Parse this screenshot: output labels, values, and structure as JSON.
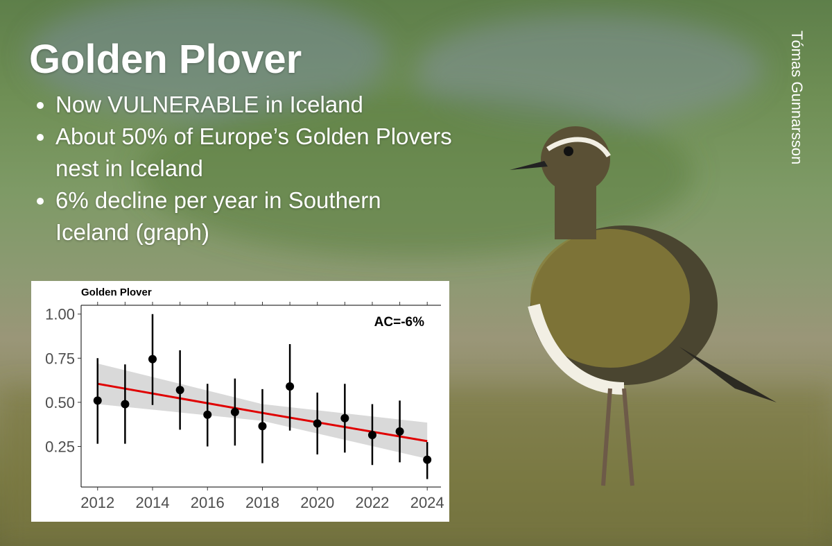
{
  "slide": {
    "title": "Golden Plover",
    "bullets": [
      "Now VULNERABLE in Iceland",
      "About 50% of Europe’s Golden Plovers nest in Iceland",
      "6% decline per year in Southern Iceland (graph)"
    ],
    "credit": "Tómas Gunnarsson"
  },
  "chart_data": {
    "type": "scatter",
    "title": "Golden Plover",
    "annotation": "AC=-6%",
    "x": [
      2012,
      2013,
      2014,
      2015,
      2016,
      2017,
      2018,
      2019,
      2020,
      2021,
      2022,
      2023,
      2024
    ],
    "series": [
      {
        "color": "#000000",
        "values": [
          0.51,
          0.49,
          0.745,
          0.57,
          0.43,
          0.445,
          0.365,
          0.59,
          0.38,
          0.41,
          0.315,
          0.335,
          0.175
        ],
        "lower": [
          0.265,
          0.265,
          0.485,
          0.345,
          0.25,
          0.255,
          0.155,
          0.34,
          0.205,
          0.215,
          0.145,
          0.16,
          0.065
        ],
        "upper": [
          0.75,
          0.715,
          1.0,
          0.795,
          0.605,
          0.635,
          0.575,
          0.83,
          0.555,
          0.605,
          0.49,
          0.51,
          0.275
        ]
      }
    ],
    "trend": {
      "color": "#e00000",
      "band_color": "#d9d9d9",
      "x": [
        2012,
        2018,
        2024
      ],
      "values": [
        0.605,
        0.44,
        0.28
      ],
      "lower": [
        0.49,
        0.395,
        0.18
      ],
      "upper": [
        0.72,
        0.49,
        0.385
      ]
    },
    "xlim": [
      2011.4,
      2024.5
    ],
    "ylim": [
      0.02,
      1.05
    ],
    "xticks": [
      2012,
      2014,
      2016,
      2018,
      2020,
      2022,
      2024
    ],
    "yticks": [
      {
        "value": 0.25,
        "label": "0.25"
      },
      {
        "value": 0.5,
        "label": "0.50"
      },
      {
        "value": 0.75,
        "label": "0.75"
      },
      {
        "value": 1.0,
        "label": "1.00"
      }
    ],
    "grid": false
  }
}
